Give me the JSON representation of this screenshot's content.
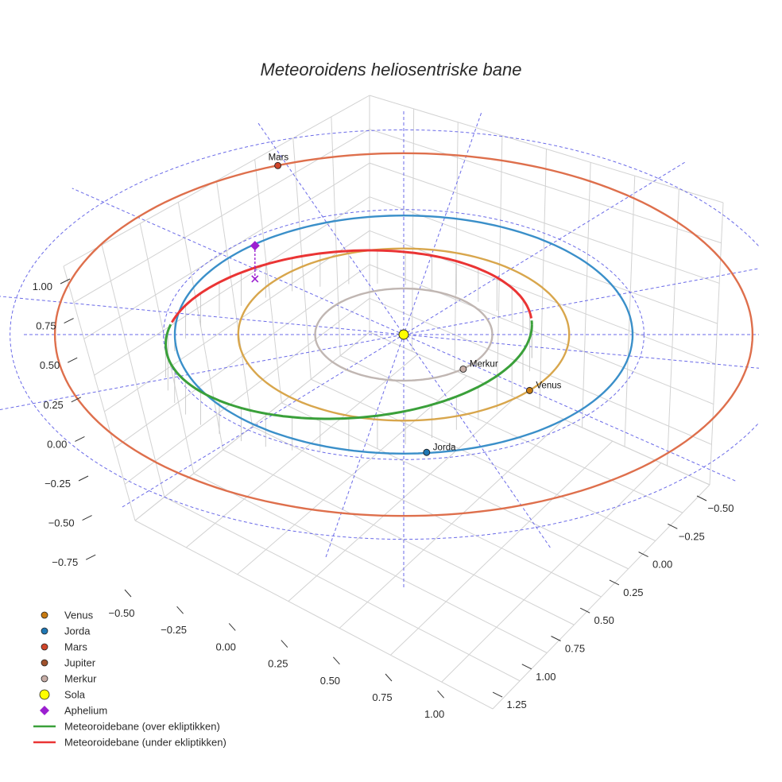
{
  "chart_data": {
    "type": "scatter3d",
    "title": "Meteoroidens heliosentriske bane",
    "axes": {
      "x_ticks": [
        "−0.50",
        "−0.25",
        "0.00",
        "0.25",
        "0.50",
        "0.75",
        "1.00"
      ],
      "y_ticks": [
        "−0.50",
        "−0.25",
        "0.00",
        "0.25",
        "0.50",
        "0.75",
        "1.00",
        "1.25"
      ],
      "z_ticks": [
        "1.00",
        "0.75",
        "0.50",
        "0.25",
        "0.00",
        "−0.25",
        "−0.50",
        "−0.75"
      ],
      "grid": true
    },
    "orbits": [
      {
        "name": "Merkur",
        "a": 0.387,
        "color": "#c0b6b2"
      },
      {
        "name": "Venus",
        "a": 0.723,
        "color": "#d8a64c"
      },
      {
        "name": "Jorda",
        "a": 1.0,
        "color": "#3a8fc9"
      },
      {
        "name": "Mars",
        "a": 1.524,
        "color": "#de6f4c"
      }
    ],
    "ecliptic_reference": {
      "style": "dashed",
      "color": "#6a6ae8"
    },
    "planets": [
      {
        "name": "Venus",
        "label": "Venus",
        "x": 0.55,
        "y": 0.47,
        "color": "#c87a10"
      },
      {
        "name": "Jorda",
        "label": "Jorda",
        "x": 0.1,
        "y": 0.99,
        "color": "#1f77b4"
      },
      {
        "name": "Mars",
        "label": "Mars",
        "x": -0.55,
        "y": -1.42,
        "color": "#d0452a"
      },
      {
        "name": "Merkur",
        "label": "Merkur",
        "x": 0.26,
        "y": 0.29,
        "color": "#c6ada6"
      },
      {
        "name": "Sola",
        "label": "",
        "x": 0,
        "y": 0,
        "color": "#ffff00"
      }
    ],
    "aphelium": {
      "name": "Aphelium",
      "x": -0.65,
      "y": -0.62,
      "z": 0.1,
      "color": "#9b1fd0"
    },
    "meteoroid_orbit": {
      "a": 0.8,
      "e": 0.3,
      "center_x": -0.24,
      "segments": [
        {
          "name": "Meteoroidebane (over ekliptikken)",
          "color": "#3aa03a"
        },
        {
          "name": "Meteoroidebane (under ekliptikken)",
          "color": "#ea3434"
        }
      ]
    },
    "legend": {
      "position": "bottom-left",
      "entries": [
        {
          "label": "Venus",
          "symbol": "circle",
          "color": "#c87a10"
        },
        {
          "label": "Jorda",
          "symbol": "circle",
          "color": "#1f77b4"
        },
        {
          "label": "Mars",
          "symbol": "circle",
          "color": "#d0452a"
        },
        {
          "label": "Jupiter",
          "symbol": "circle",
          "color": "#a0522d"
        },
        {
          "label": "Merkur",
          "symbol": "circle",
          "color": "#c6ada6"
        },
        {
          "label": "Sola",
          "symbol": "circle-large",
          "color": "#ffff00"
        },
        {
          "label": "Aphelium",
          "symbol": "diamond",
          "color": "#9b1fd0"
        },
        {
          "label": "Meteoroidebane (over ekliptikken)",
          "symbol": "line",
          "color": "#3aa03a"
        },
        {
          "label": "Meteoroidebane (under ekliptikken)",
          "symbol": "line",
          "color": "#ea3434"
        }
      ]
    }
  }
}
